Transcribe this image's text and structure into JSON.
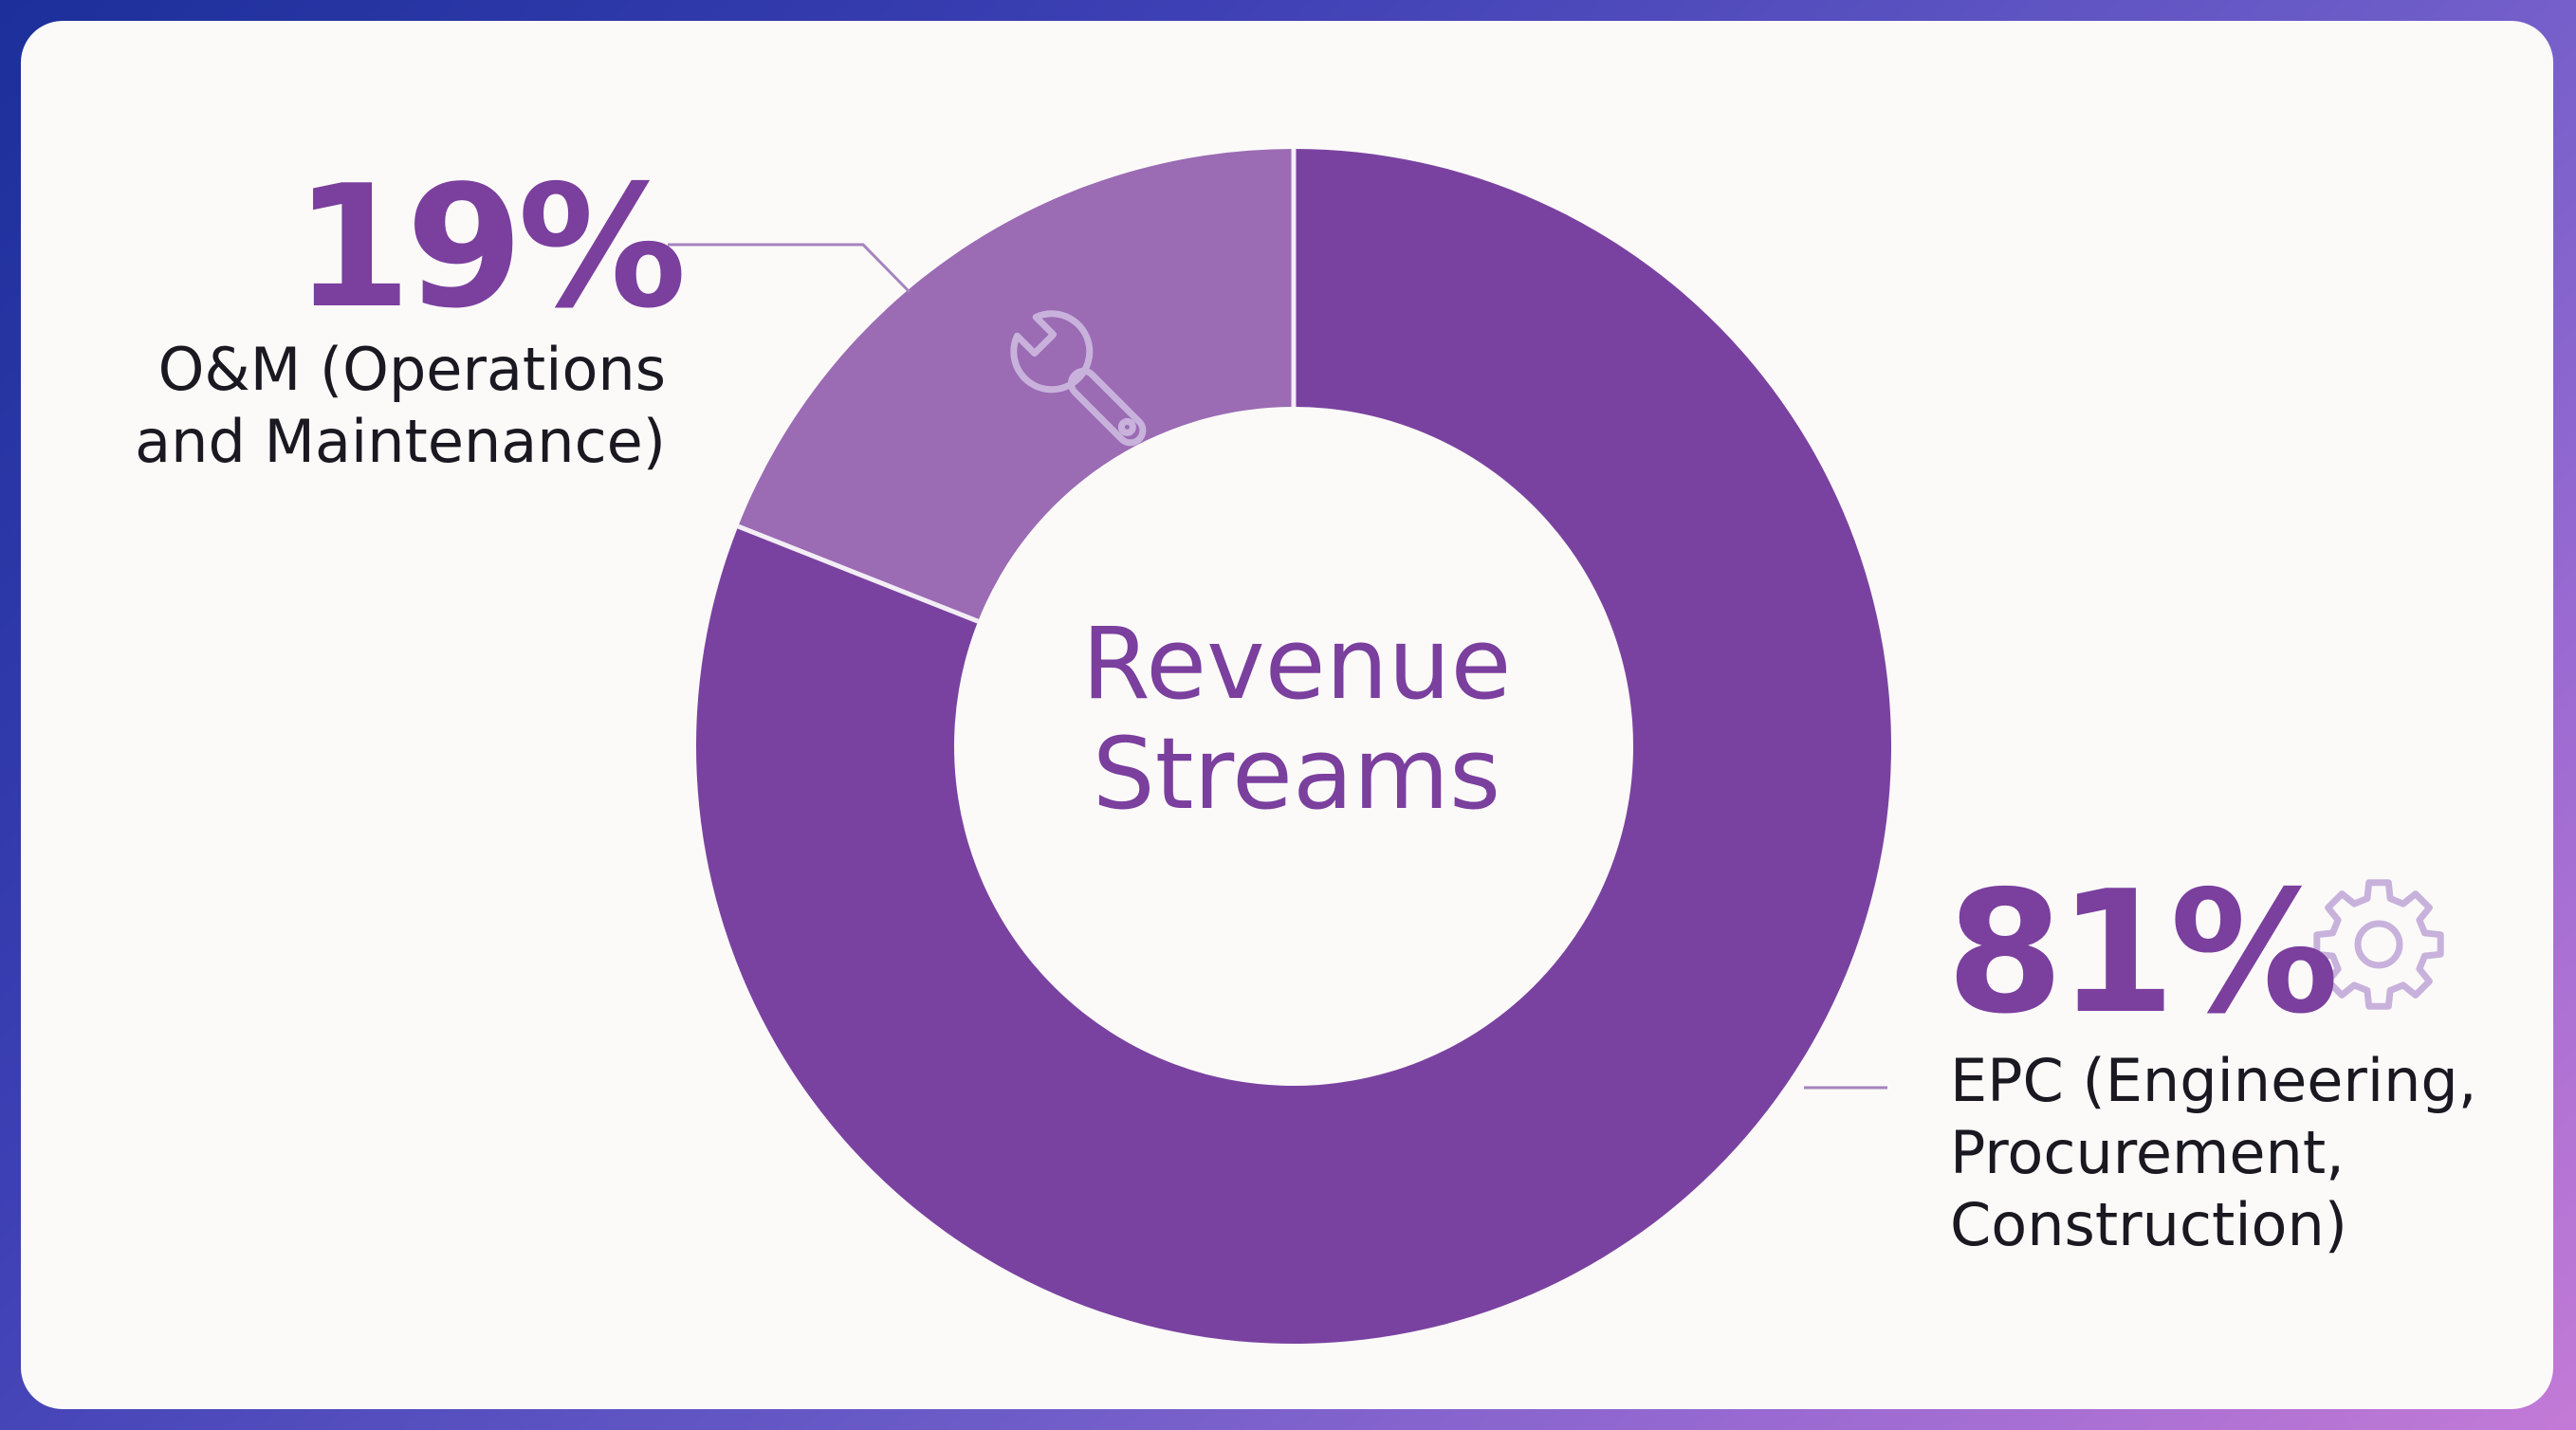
{
  "colors": {
    "epc_segment": "#7a42a0",
    "om_segment": "#9b6bb4",
    "accent_text": "#7b3f9e",
    "icon_stroke": "#c8b2dc",
    "connector": "#a584bd",
    "separator": "#f3eef6"
  },
  "chart_data": {
    "type": "pie",
    "variant": "donut",
    "title": "Revenue Streams",
    "categories": [
      "O&M (Operations and Maintenance)",
      "EPC (Engineering, Procurement, Construction)"
    ],
    "values": [
      19,
      81
    ],
    "unit": "%",
    "value_labels": [
      "19%",
      "81%"
    ],
    "segments": [
      {
        "key": "om",
        "value": 19,
        "value_label": "19%",
        "label_lines": [
          "O&M (Operations",
          "and Maintenance)"
        ],
        "icon": "wrench-icon"
      },
      {
        "key": "epc",
        "value": 81,
        "value_label": "81%",
        "label_lines": [
          "EPC (Engineering,",
          "Procurement,",
          "Construction)"
        ],
        "icon": "gear-icon"
      }
    ],
    "legend": "none"
  },
  "center": {
    "title_lines": [
      "Revenue",
      "Streams"
    ]
  }
}
